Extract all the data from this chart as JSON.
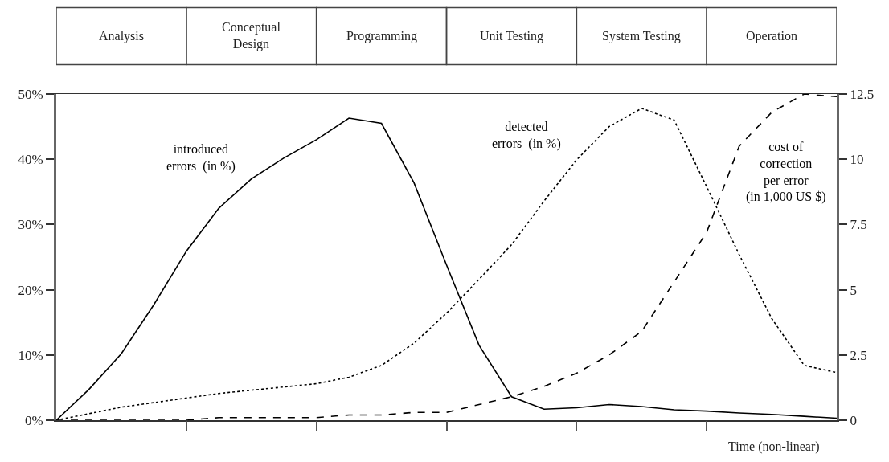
{
  "chart_data": {
    "type": "line",
    "xlabel": "Time (non-linear)",
    "categories": [
      null,
      null,
      null,
      null,
      null,
      null,
      null,
      null,
      null,
      null,
      null,
      null,
      null,
      null,
      null,
      null,
      null,
      null,
      null,
      null,
      null,
      null,
      null,
      null,
      null
    ],
    "ylim": [
      0,
      50
    ],
    "yticks": [
      {
        "value": 0,
        "label": "0%"
      },
      {
        "value": 10,
        "label": "10%"
      },
      {
        "value": 20,
        "label": "20%"
      },
      {
        "value": 30,
        "label": "30%"
      },
      {
        "value": 40,
        "label": "40%"
      },
      {
        "value": 50,
        "label": "50%"
      }
    ],
    "y2lim": [
      0,
      12.5
    ],
    "y2ticks": [
      0,
      2.5,
      5,
      7.5,
      10,
      12.5
    ],
    "grid": false,
    "legend": false,
    "marker": "none",
    "series": [
      {
        "name": "introduced\nerrors  (in %)",
        "color": "#000000",
        "line_style": "solid",
        "values": [
          0,
          4.7,
          10.2,
          17.7,
          25.9,
          32.5,
          37,
          40.2,
          43,
          46.3,
          45.5,
          36.4,
          23.8,
          11.5,
          3.6,
          1.7,
          1.9,
          2.4,
          2.1,
          1.6,
          1.4,
          1.1,
          0.9,
          0.6,
          0.3
        ]
      },
      {
        "name": "detected\nerrors  (in %)",
        "color": "#000000",
        "line_style": "dotted",
        "values": [
          0,
          1,
          2,
          2.7,
          3.4,
          4.1,
          4.6,
          5.1,
          5.6,
          6.6,
          8.4,
          11.8,
          16.4,
          21.6,
          26.9,
          33.6,
          39.9,
          45,
          47.8,
          46,
          35.8,
          25.4,
          15.6,
          8.4,
          7.3
        ]
      },
      {
        "name": "cost of\ncorrection\nper error\n(in 1,000 US $)",
        "color": "#000000",
        "line_style": "dashed",
        "axis": "y2",
        "values": [
          0,
          0,
          0,
          0,
          0,
          0.1,
          0.1,
          0.1,
          0.1,
          0.2,
          0.2,
          0.3,
          0.3,
          0.6,
          0.9,
          1.3,
          1.8,
          2.5,
          3.4,
          5.3,
          7.2,
          10.5,
          11.8,
          12.5,
          12.4
        ]
      }
    ],
    "annotations": [
      "Analysis",
      "Conceptual\nDesign",
      "Programming",
      "Unit Testing",
      "System Testing",
      "Operation"
    ]
  }
}
